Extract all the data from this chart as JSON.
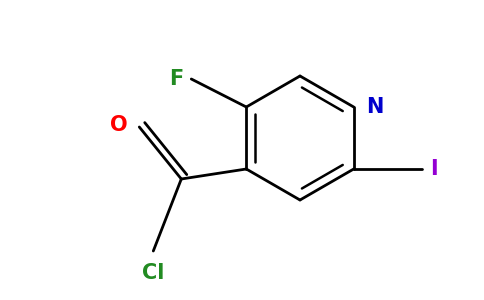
{
  "bg_color": "#ffffff",
  "line_color": "#000000",
  "bond_width": 2.0,
  "font_size": 15,
  "atom_colors": {
    "F": "#228B22",
    "N": "#0000CD",
    "O": "#FF0000",
    "Cl": "#228B22",
    "I": "#9400D3"
  },
  "figsize": [
    4.84,
    3.0
  ],
  "dpi": 100
}
